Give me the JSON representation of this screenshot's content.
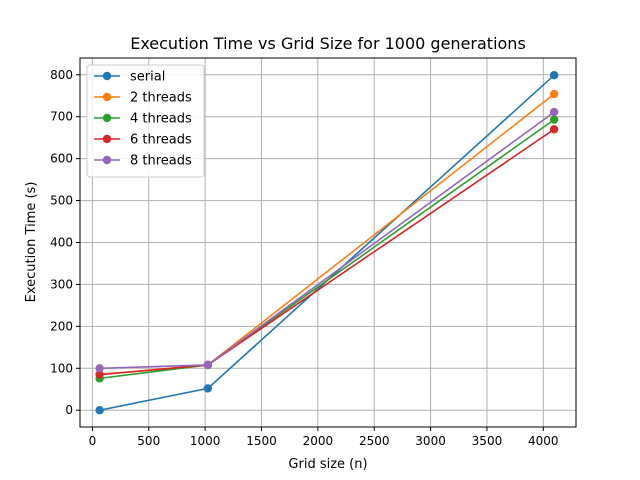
{
  "chart_data": {
    "type": "line",
    "title": "Execution Time vs Grid Size for 1000 generations",
    "xlabel": "Grid size (n)",
    "ylabel": "Execution Time (s)",
    "xlim": [
      -110,
      4290
    ],
    "ylim": [
      -40,
      840
    ],
    "xticks": [
      0,
      500,
      1000,
      1500,
      2000,
      2500,
      3000,
      3500,
      4000
    ],
    "yticks": [
      0,
      100,
      200,
      300,
      400,
      500,
      600,
      700,
      800
    ],
    "grid": true,
    "legend_position": "top-left",
    "x": [
      64,
      1024,
      4096
    ],
    "series": [
      {
        "name": "serial",
        "color": "#1f77b4",
        "values": [
          0,
          52,
          799
        ]
      },
      {
        "name": "2 threads",
        "color": "#ff7f0e",
        "values": [
          85,
          108,
          754
        ]
      },
      {
        "name": "4 threads",
        "color": "#2ca02c",
        "values": [
          76,
          108,
          693
        ]
      },
      {
        "name": "6 threads",
        "color": "#d62728",
        "values": [
          85,
          108,
          670
        ]
      },
      {
        "name": "8 threads",
        "color": "#9467bd",
        "values": [
          100,
          108,
          711
        ]
      }
    ]
  }
}
